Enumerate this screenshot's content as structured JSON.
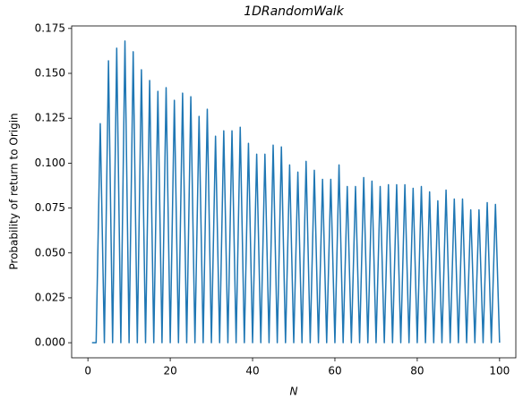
{
  "chart_data": {
    "type": "line",
    "title": "1DRandomWalk",
    "xlabel": "N",
    "ylabel": "Probability of return to Origin",
    "x": [
      1,
      2,
      3,
      4,
      5,
      6,
      7,
      8,
      9,
      10,
      11,
      12,
      13,
      14,
      15,
      16,
      17,
      18,
      19,
      20,
      21,
      22,
      23,
      24,
      25,
      26,
      27,
      28,
      29,
      30,
      31,
      32,
      33,
      34,
      35,
      36,
      37,
      38,
      39,
      40,
      41,
      42,
      43,
      44,
      45,
      46,
      47,
      48,
      49,
      50,
      51,
      52,
      53,
      54,
      55,
      56,
      57,
      58,
      59,
      60,
      61,
      62,
      63,
      64,
      65,
      66,
      67,
      68,
      69,
      70,
      71,
      72,
      73,
      74,
      75,
      76,
      77,
      78,
      79,
      80,
      81,
      82,
      83,
      84,
      85,
      86,
      87,
      88,
      89,
      90,
      91,
      92,
      93,
      94,
      95,
      96,
      97,
      98,
      99,
      100
    ],
    "series": [
      {
        "color": "#1f77b4",
        "values": [
          0,
          0,
          0.122,
          0,
          0.157,
          0,
          0.164,
          0,
          0.168,
          0,
          0.162,
          0,
          0.152,
          0,
          0.146,
          0,
          0.14,
          0,
          0.142,
          0,
          0.135,
          0,
          0.139,
          0,
          0.137,
          0,
          0.126,
          0,
          0.13,
          0,
          0.115,
          0,
          0.118,
          0,
          0.118,
          0,
          0.12,
          0,
          0.111,
          0,
          0.105,
          0,
          0.105,
          0,
          0.11,
          0,
          0.109,
          0,
          0.099,
          0,
          0.095,
          0,
          0.101,
          0,
          0.096,
          0,
          0.091,
          0,
          0.091,
          0,
          0.099,
          0,
          0.087,
          0,
          0.087,
          0,
          0.092,
          0,
          0.09,
          0,
          0.087,
          0,
          0.088,
          0,
          0.088,
          0,
          0.088,
          0,
          0.086,
          0,
          0.087,
          0,
          0.084,
          0,
          0.079,
          0,
          0.085,
          0,
          0.08,
          0,
          0.08,
          0,
          0.074,
          0,
          0.074,
          0,
          0.078,
          0,
          0.077,
          0
        ]
      }
    ],
    "xlim": [
      -3.95,
      103.95
    ],
    "xticks": [
      0,
      20,
      40,
      60,
      80,
      100
    ],
    "ylim": [
      -0.0084,
      0.1764
    ],
    "yticks": [
      {
        "value": 0,
        "label": "0.000"
      },
      {
        "value": 0.025,
        "label": "0.025"
      },
      {
        "value": 0.05,
        "label": "0.050"
      },
      {
        "value": 0.075,
        "label": "0.075"
      },
      {
        "value": 0.1,
        "label": "0.100"
      },
      {
        "value": 0.125,
        "label": "0.125"
      },
      {
        "value": 0.15,
        "label": "0.150"
      },
      {
        "value": 0.175,
        "label": "0.175"
      }
    ],
    "grid": false
  }
}
